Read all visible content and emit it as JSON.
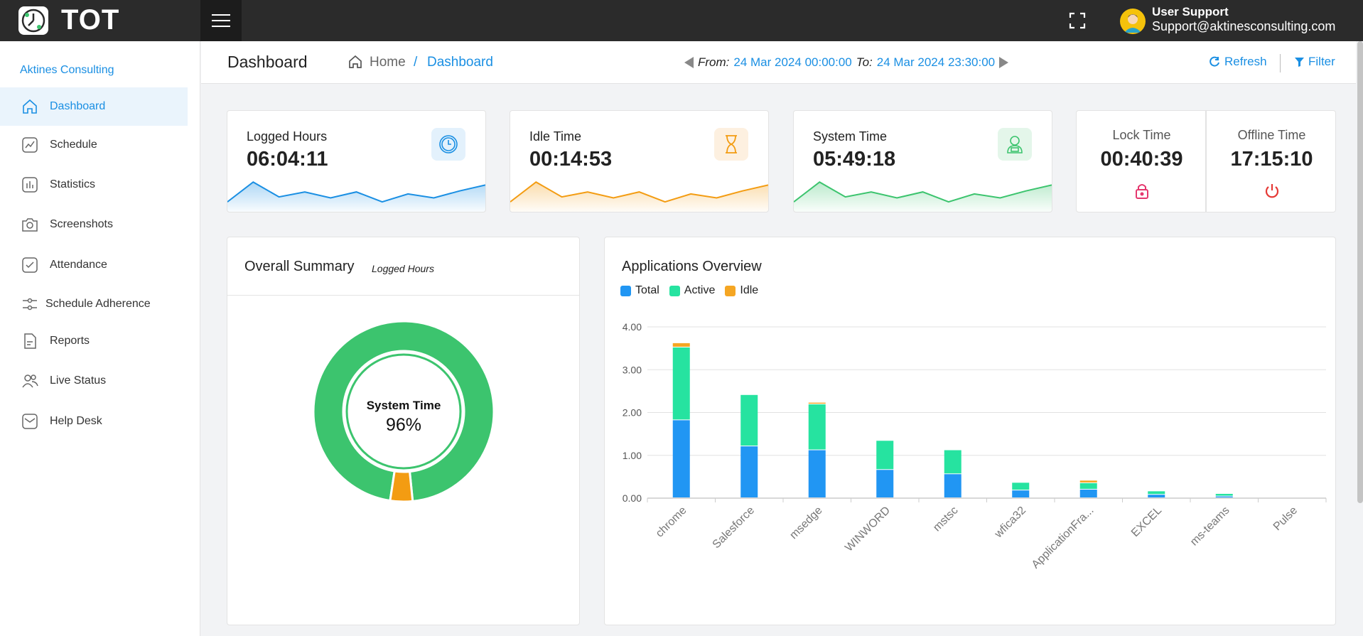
{
  "app": {
    "name": "TOT"
  },
  "user": {
    "name": "User Support",
    "email": "Support@aktinesconsulting.com"
  },
  "sidebar": {
    "org": "Aktines Consulting",
    "items": [
      {
        "label": "Dashboard",
        "icon": "home-icon",
        "active": true
      },
      {
        "label": "Schedule",
        "icon": "schedule-icon"
      },
      {
        "label": "Statistics",
        "icon": "statistics-icon"
      },
      {
        "label": "Screenshots",
        "icon": "camera-icon"
      },
      {
        "label": "Attendance",
        "icon": "attendance-icon"
      },
      {
        "label": "Schedule Adherence",
        "icon": "adherence-icon"
      },
      {
        "label": "Reports",
        "icon": "reports-icon"
      },
      {
        "label": "Live Status",
        "icon": "users-icon"
      },
      {
        "label": "Help Desk",
        "icon": "mail-icon"
      }
    ]
  },
  "header": {
    "title": "Dashboard",
    "breadcrumb": {
      "home": "Home",
      "sep": "/",
      "current": "Dashboard"
    },
    "range": {
      "from_label": "From:",
      "from": "24 Mar 2024 00:00:00",
      "to_label": "To:",
      "to": "24 Mar 2024 23:30:00"
    },
    "refresh": "Refresh",
    "filter": "Filter"
  },
  "metrics": [
    {
      "label": "Logged Hours",
      "value": "06:04:11",
      "color": "#1a8fe3",
      "icon": "clock-icon",
      "trend": [
        2,
        6,
        3,
        4,
        2.8,
        4,
        2,
        3.6,
        2.8,
        4.2,
        5.4
      ]
    },
    {
      "label": "Idle Time",
      "value": "00:14:53",
      "color": "#f39c12",
      "icon": "hourglass-icon",
      "trend": [
        2,
        6,
        3,
        4,
        2.8,
        4,
        2,
        3.6,
        2.8,
        4.2,
        5.4
      ]
    },
    {
      "label": "System Time",
      "value": "05:49:18",
      "color": "#3cc46e",
      "icon": "system-user-icon",
      "trend": [
        2,
        6,
        3,
        4,
        2.8,
        4,
        2,
        3.6,
        2.8,
        4.2,
        5.4
      ]
    }
  ],
  "lock": {
    "label": "Lock Time",
    "value": "00:40:39",
    "color": "#e5386e"
  },
  "offline": {
    "label": "Offline Time",
    "value": "17:15:10",
    "color": "#e53935"
  },
  "summary": {
    "title": "Overall Summary",
    "subtitle": "Logged Hours",
    "center_label": "System Time",
    "center_value": "96%",
    "slices": [
      {
        "name": "System Time",
        "value": 96,
        "color": "#3cc46e"
      },
      {
        "name": "Idle Time",
        "value": 4,
        "color": "#f39c12"
      }
    ]
  },
  "chart_data": {
    "type": "bar",
    "title": "Applications Overview",
    "categories": [
      "chrome",
      "Salesforce",
      "msedge",
      "WINWORD",
      "mstsc",
      "wfica32",
      "ApplicationFra...",
      "EXCEL",
      "ms-teams",
      "Pulse"
    ],
    "series": [
      {
        "name": "Total",
        "color": "#2196f3",
        "values": [
          1.82,
          1.21,
          1.12,
          0.66,
          0.56,
          0.18,
          0.2,
          0.08,
          0.04,
          0.0
        ]
      },
      {
        "name": "Active",
        "color": "#26e3a0",
        "values": [
          1.7,
          1.2,
          1.07,
          0.68,
          0.56,
          0.18,
          0.15,
          0.08,
          0.06,
          0.0
        ]
      },
      {
        "name": "Idle",
        "color": "#f5a623",
        "values": [
          0.1,
          0.0,
          0.04,
          0.0,
          0.0,
          0.0,
          0.06,
          0.0,
          0.0,
          0.0
        ]
      }
    ],
    "stacked": true,
    "ylim": [
      0,
      4
    ],
    "yticks": [
      "0.00",
      "1.00",
      "2.00",
      "3.00",
      "4.00"
    ],
    "grid": true,
    "legend": "top-left"
  }
}
